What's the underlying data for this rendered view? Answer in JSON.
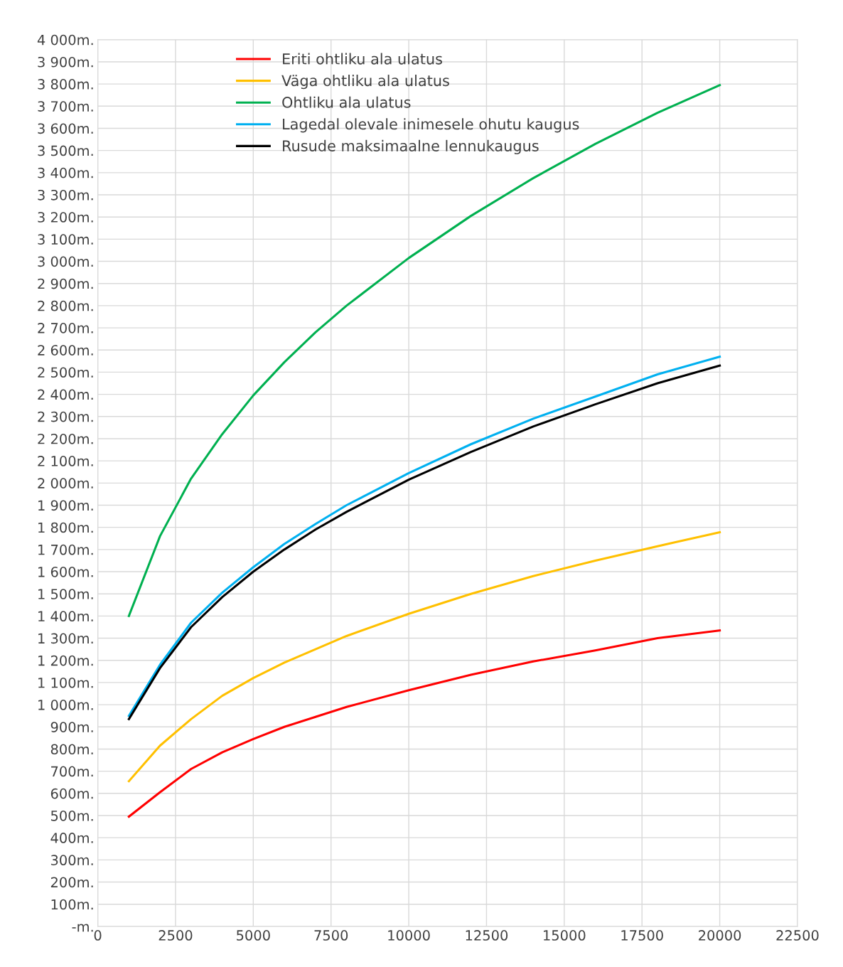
{
  "chart_data": {
    "type": "line",
    "x": [
      1000,
      2000,
      3000,
      4000,
      5000,
      6000,
      7000,
      8000,
      10000,
      12000,
      14000,
      16000,
      18000,
      20000
    ],
    "series": [
      {
        "name": "Eriti ohtliku ala ulatus",
        "color": "#ff0000",
        "values": [
          495,
          605,
          710,
          785,
          845,
          900,
          945,
          990,
          1065,
          1135,
          1195,
          1245,
          1300,
          1335
        ]
      },
      {
        "name": "Väga ohtliku ala ulatus",
        "color": "#ffc000",
        "values": [
          655,
          815,
          935,
          1040,
          1120,
          1190,
          1250,
          1310,
          1410,
          1500,
          1580,
          1650,
          1715,
          1778
        ]
      },
      {
        "name": "Ohtliku ala ulatus",
        "color": "#00b050",
        "values": [
          1400,
          1760,
          2020,
          2220,
          2395,
          2545,
          2680,
          2800,
          3015,
          3205,
          3375,
          3530,
          3670,
          3795
        ]
      },
      {
        "name": "Lagedal olevale inimesele ohutu kaugus",
        "color": "#00b0f0",
        "values": [
          950,
          1180,
          1370,
          1505,
          1620,
          1725,
          1815,
          1900,
          2045,
          2175,
          2290,
          2390,
          2490,
          2570
        ]
      },
      {
        "name": "Rusude maksimaalne lennukaugus",
        "color": "#000000",
        "values": [
          935,
          1165,
          1350,
          1485,
          1600,
          1700,
          1790,
          1870,
          2015,
          2140,
          2255,
          2355,
          2450,
          2530
        ]
      }
    ],
    "xlim": [
      0,
      22500
    ],
    "xticks": [
      0,
      2500,
      5000,
      7500,
      10000,
      12500,
      15000,
      17500,
      20000,
      22500
    ],
    "ylim": [
      0,
      4000
    ],
    "yticks": [
      {
        "value": 0,
        "label": "-m."
      },
      {
        "value": 100,
        "label": "100m."
      },
      {
        "value": 200,
        "label": "200m."
      },
      {
        "value": 300,
        "label": "300m."
      },
      {
        "value": 400,
        "label": "400m."
      },
      {
        "value": 500,
        "label": "500m."
      },
      {
        "value": 600,
        "label": "600m."
      },
      {
        "value": 700,
        "label": "700m."
      },
      {
        "value": 800,
        "label": "800m."
      },
      {
        "value": 900,
        "label": "900m."
      },
      {
        "value": 1000,
        "label": "1 000m."
      },
      {
        "value": 1100,
        "label": "1 100m."
      },
      {
        "value": 1200,
        "label": "1 200m."
      },
      {
        "value": 1300,
        "label": "1 300m."
      },
      {
        "value": 1400,
        "label": "1 400m."
      },
      {
        "value": 1500,
        "label": "1 500m."
      },
      {
        "value": 1600,
        "label": "1 600m."
      },
      {
        "value": 1700,
        "label": "1 700m."
      },
      {
        "value": 1800,
        "label": "1 800m."
      },
      {
        "value": 1900,
        "label": "1 900m."
      },
      {
        "value": 2000,
        "label": "2 000m."
      },
      {
        "value": 2100,
        "label": "2 100m."
      },
      {
        "value": 2200,
        "label": "2 200m."
      },
      {
        "value": 2300,
        "label": "2 300m."
      },
      {
        "value": 2400,
        "label": "2 400m."
      },
      {
        "value": 2500,
        "label": "2 500m."
      },
      {
        "value": 2600,
        "label": "2 600m."
      },
      {
        "value": 2700,
        "label": "2 700m."
      },
      {
        "value": 2800,
        "label": "2 800m."
      },
      {
        "value": 2900,
        "label": "2 900m."
      },
      {
        "value": 3000,
        "label": "3 000m."
      },
      {
        "value": 3100,
        "label": "3 100m."
      },
      {
        "value": 3200,
        "label": "3 200m."
      },
      {
        "value": 3300,
        "label": "3 300m."
      },
      {
        "value": 3400,
        "label": "3 400m."
      },
      {
        "value": 3500,
        "label": "3 500m."
      },
      {
        "value": 3600,
        "label": "3 600m."
      },
      {
        "value": 3700,
        "label": "3 700m."
      },
      {
        "value": 3800,
        "label": "3 800m."
      },
      {
        "value": 3900,
        "label": "3 900m."
      },
      {
        "value": 4000,
        "label": "4 000m."
      }
    ],
    "grid": true,
    "legend": "top left",
    "marker": "none",
    "line_style": "solid"
  }
}
